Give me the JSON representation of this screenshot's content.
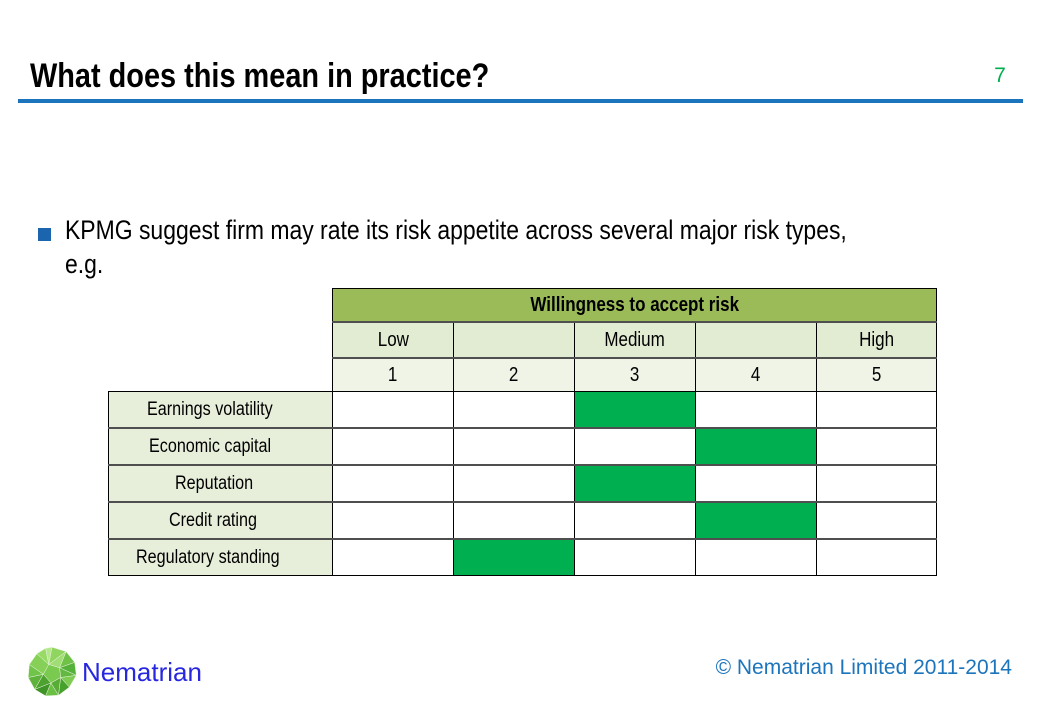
{
  "title": "What does this mean in practice?",
  "page_number": "7",
  "bullet": {
    "line1": "KPMG suggest firm may rate its risk appetite across several major risk types,",
    "line2": "e.g."
  },
  "table": {
    "header": "Willingness to accept risk",
    "levels": [
      "Low",
      "",
      "Medium",
      "",
      "High"
    ],
    "scale": [
      "1",
      "2",
      "3",
      "4",
      "5"
    ],
    "rows": [
      {
        "label": "Earnings volatility",
        "rating": 3
      },
      {
        "label": "Economic capital",
        "rating": 4
      },
      {
        "label": "Reputation",
        "rating": 3
      },
      {
        "label": "Credit rating",
        "rating": 4
      },
      {
        "label": "Regulatory standing",
        "rating": 2
      }
    ]
  },
  "footer": {
    "brand": "Nematrian",
    "copyright": "© Nematrian Limited 2011-2014"
  },
  "colors": {
    "accent_blue": "#1C75BC",
    "page_number_green": "#00B050",
    "header_green": "#9BBB59",
    "cell_fill_green": "#00B050",
    "brand_blue": "#2727DF",
    "bullet_blue": "#1B65AE"
  }
}
